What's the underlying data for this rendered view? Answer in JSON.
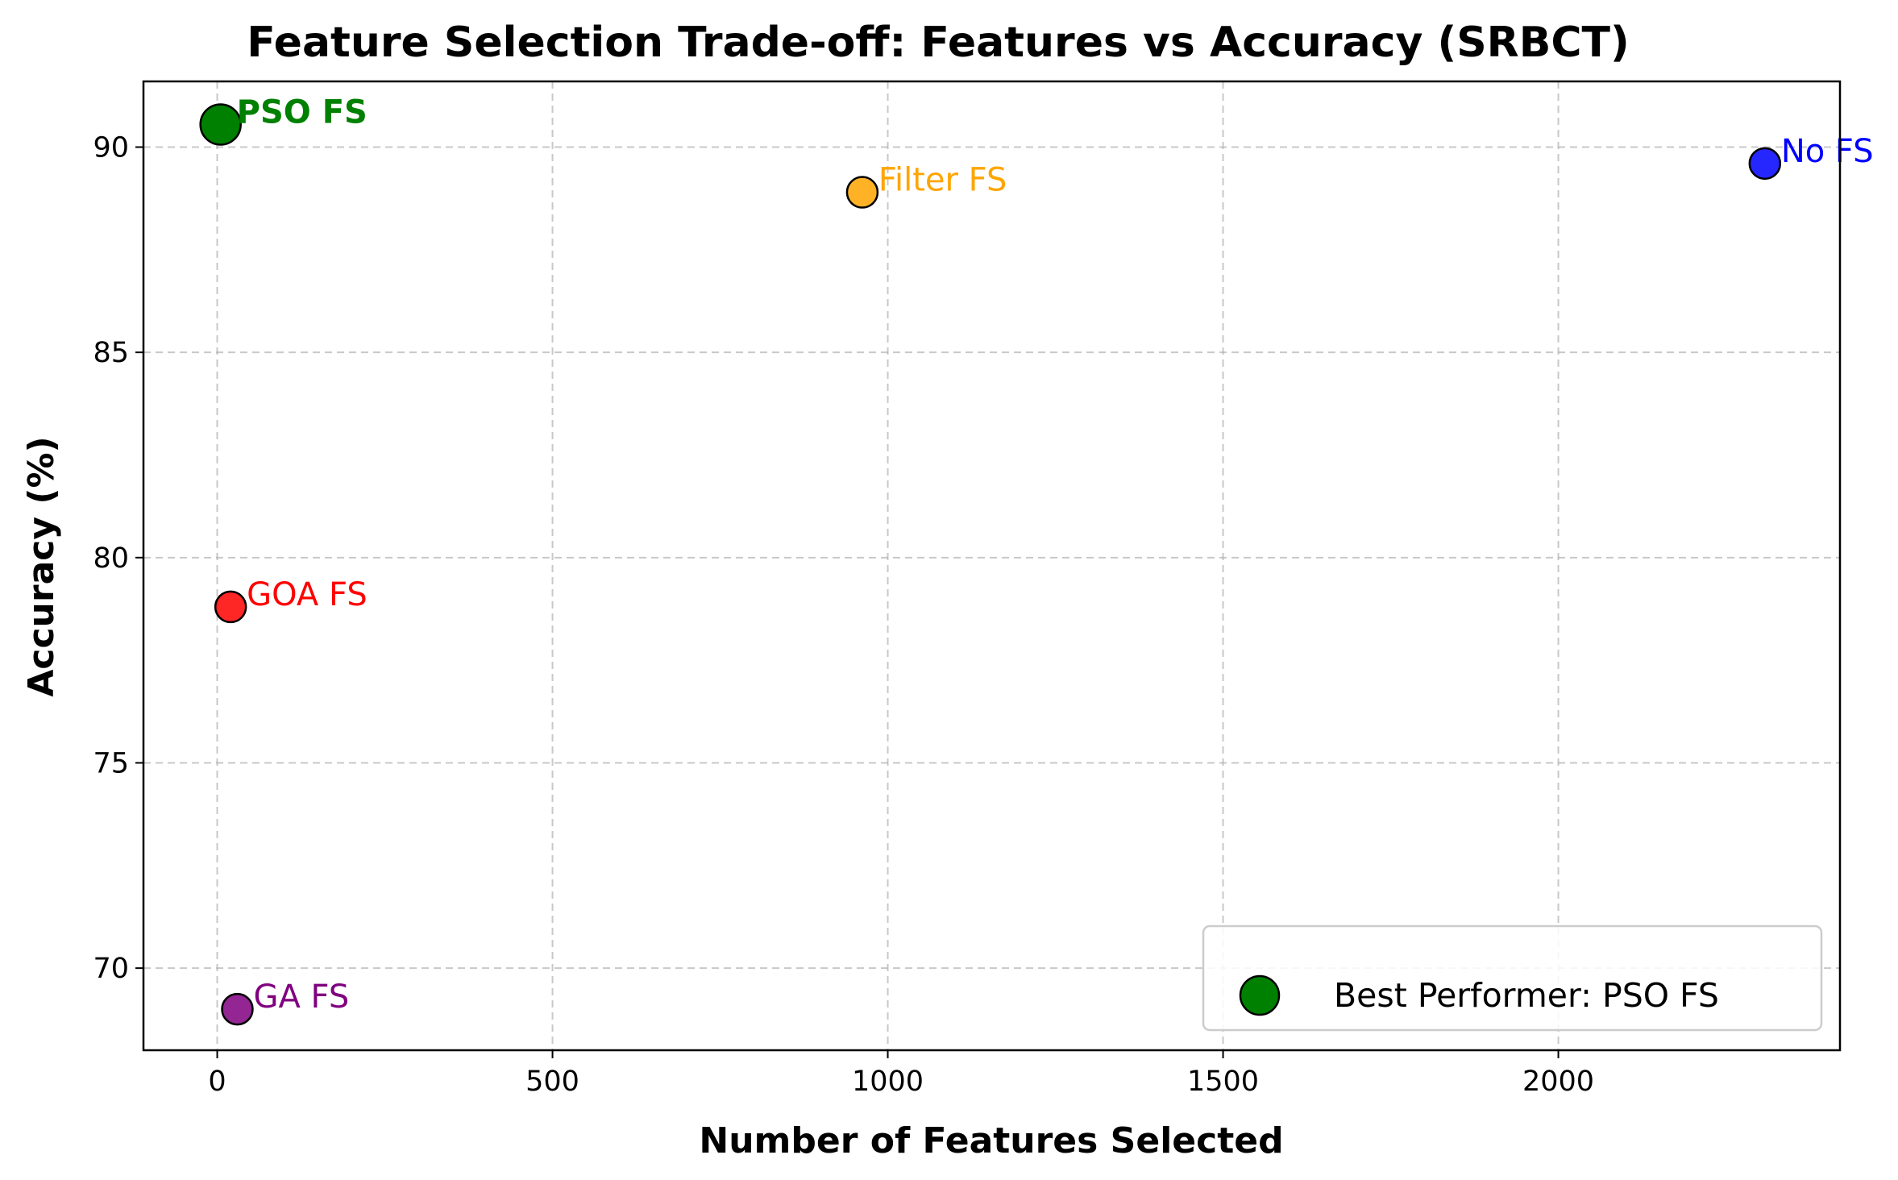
{
  "chart_data": {
    "type": "scatter",
    "title": "Feature Selection Trade-off: Features vs Accuracy (SRBCT)",
    "xlabel": "Number of Features Selected",
    "ylabel": "Accuracy (%)",
    "xlim": [
      -110,
      2420
    ],
    "ylim": [
      68.0,
      91.6
    ],
    "xticks": [
      0,
      500,
      1000,
      1500,
      2000
    ],
    "yticks": [
      70,
      75,
      80,
      85,
      90
    ],
    "grid": true,
    "points": [
      {
        "label": "PSO FS",
        "x": 5,
        "y": 90.55,
        "color": "#008000",
        "highlight": true
      },
      {
        "label": "Filter FS",
        "x": 962,
        "y": 88.9,
        "color": "#ffa500",
        "highlight": false
      },
      {
        "label": "No FS",
        "x": 2308,
        "y": 89.6,
        "color": "#0000ff",
        "highlight": false
      },
      {
        "label": "GOA FS",
        "x": 20,
        "y": 78.8,
        "color": "#ff0000",
        "highlight": false
      },
      {
        "label": "GA FS",
        "x": 30,
        "y": 69.0,
        "color": "#800080",
        "highlight": false
      }
    ],
    "legend": {
      "position": "lower-right",
      "entries": [
        {
          "label": "Best Performer: PSO FS",
          "color": "#008000"
        }
      ]
    }
  }
}
